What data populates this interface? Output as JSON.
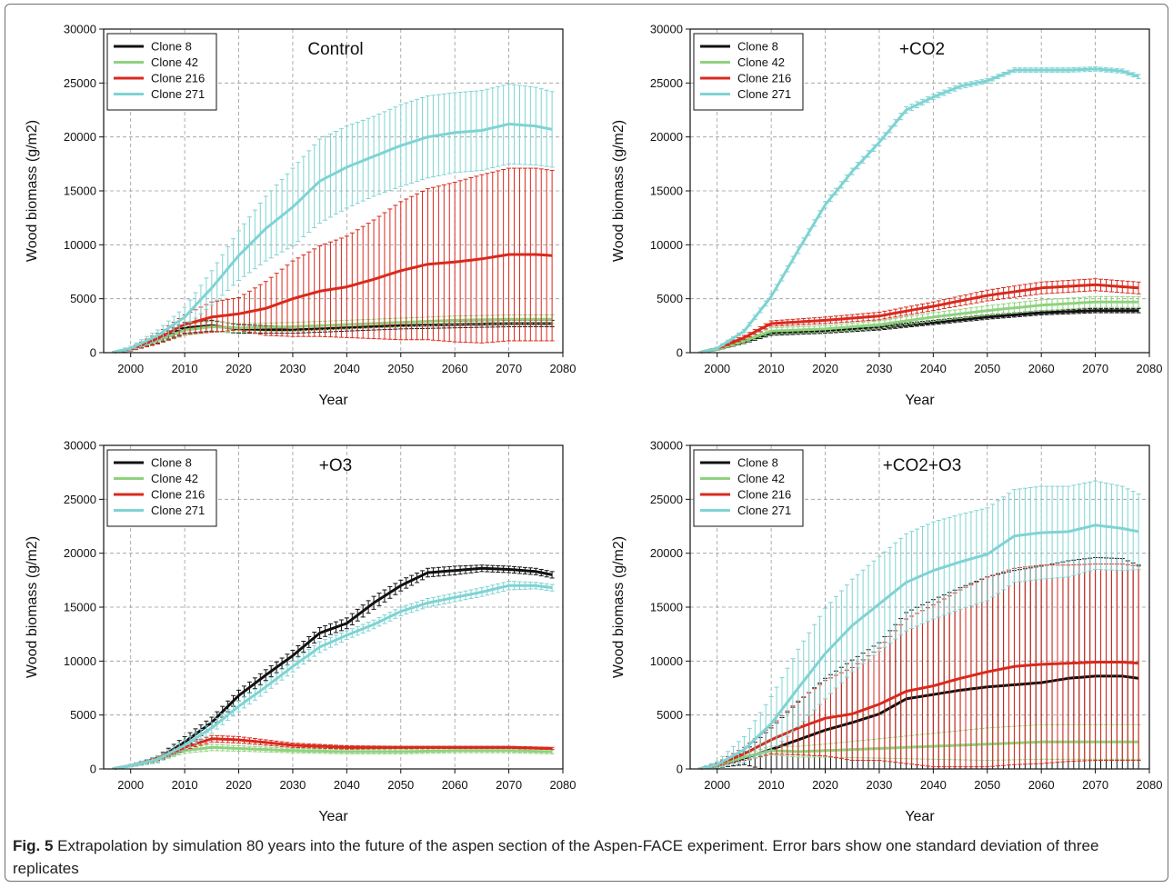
{
  "caption": {
    "label": "Fig. 5",
    "text": "Extrapolation by simulation 80 years into the future of the aspen section of the Aspen-FACE experiment. Error bars show one standard deviation of three replicates"
  },
  "colors": {
    "clone8": "#111111",
    "clone42": "#8fd27e",
    "clone216": "#d9291c",
    "clone271": "#7fd3d3",
    "grid": "#9a9a9a"
  },
  "chart_data": [
    {
      "type": "line",
      "title": "Control",
      "xlabel": "Year",
      "ylabel": "Wood biomass (g/m2)",
      "xlim": [
        1995,
        2080
      ],
      "ylim": [
        0,
        30000
      ],
      "xticks": [
        2000,
        2010,
        2020,
        2030,
        2040,
        2050,
        2060,
        2070,
        2080
      ],
      "yticks": [
        0,
        5000,
        10000,
        15000,
        20000,
        25000,
        30000
      ],
      "grid": true,
      "legend_position": "top-left",
      "error_bars": "one standard deviation",
      "series": [
        {
          "name": "Clone 8",
          "color": "#111111",
          "x": [
            1997,
            2000,
            2005,
            2010,
            2015,
            2020,
            2030,
            2040,
            2050,
            2060,
            2070,
            2078
          ],
          "y": [
            50,
            300,
            1200,
            2300,
            2500,
            2200,
            2100,
            2300,
            2500,
            2600,
            2700,
            2700
          ],
          "err": [
            30,
            100,
            300,
            500,
            500,
            400,
            300,
            300,
            300,
            300,
            300,
            300
          ]
        },
        {
          "name": "Clone 42",
          "color": "#8fd27e",
          "x": [
            1997,
            2000,
            2005,
            2010,
            2015,
            2020,
            2030,
            2040,
            2050,
            2060,
            2070,
            2078
          ],
          "y": [
            50,
            300,
            1100,
            2100,
            2400,
            2300,
            2400,
            2600,
            2800,
            3000,
            3100,
            3100
          ],
          "err": [
            30,
            100,
            300,
            500,
            500,
            400,
            400,
            400,
            400,
            400,
            400,
            400
          ]
        },
        {
          "name": "Clone 216",
          "color": "#d9291c",
          "x": [
            1997,
            2000,
            2005,
            2010,
            2015,
            2020,
            2025,
            2030,
            2035,
            2040,
            2045,
            2050,
            2055,
            2060,
            2065,
            2070,
            2075,
            2078
          ],
          "y": [
            50,
            300,
            1300,
            2600,
            3300,
            3600,
            4100,
            5000,
            5700,
            6100,
            6800,
            7600,
            8200,
            8400,
            8700,
            9100,
            9100,
            9000
          ],
          "err": [
            50,
            150,
            500,
            900,
            1400,
            1500,
            2500,
            3500,
            4200,
            4700,
            5500,
            6400,
            7000,
            7400,
            7800,
            8000,
            8000,
            7900
          ]
        },
        {
          "name": "Clone 271",
          "color": "#7fd3d3",
          "x": [
            1997,
            2000,
            2005,
            2010,
            2015,
            2020,
            2025,
            2030,
            2035,
            2040,
            2045,
            2050,
            2055,
            2060,
            2065,
            2070,
            2075,
            2078
          ],
          "y": [
            50,
            400,
            1600,
            3300,
            6000,
            9000,
            11500,
            13500,
            15900,
            17200,
            18200,
            19200,
            20000,
            20400,
            20600,
            21200,
            21000,
            20700
          ],
          "err": [
            50,
            200,
            500,
            900,
            1600,
            2300,
            3000,
            3600,
            3900,
            3800,
            3700,
            3800,
            3800,
            3700,
            3700,
            3700,
            3600,
            3500
          ]
        }
      ]
    },
    {
      "type": "line",
      "title": "+CO2",
      "xlabel": "Year",
      "ylabel": "Wood biomass (g/m2)",
      "xlim": [
        1995,
        2080
      ],
      "ylim": [
        0,
        30000
      ],
      "xticks": [
        2000,
        2010,
        2020,
        2030,
        2040,
        2050,
        2060,
        2070,
        2080
      ],
      "yticks": [
        0,
        5000,
        10000,
        15000,
        20000,
        25000,
        30000
      ],
      "grid": true,
      "legend_position": "top-left",
      "error_bars": "one standard deviation",
      "series": [
        {
          "name": "Clone 8",
          "color": "#111111",
          "x": [
            1997,
            2000,
            2005,
            2010,
            2020,
            2030,
            2040,
            2050,
            2060,
            2070,
            2078
          ],
          "y": [
            50,
            300,
            1000,
            1800,
            2000,
            2300,
            2800,
            3300,
            3700,
            3900,
            3900
          ],
          "err": [
            30,
            80,
            150,
            200,
            200,
            200,
            200,
            200,
            200,
            200,
            200
          ]
        },
        {
          "name": "Clone 42",
          "color": "#8fd27e",
          "x": [
            1997,
            2000,
            2005,
            2010,
            2020,
            2030,
            2040,
            2050,
            2060,
            2070,
            2078
          ],
          "y": [
            50,
            300,
            1100,
            2000,
            2200,
            2600,
            3300,
            3900,
            4400,
            4700,
            4700
          ],
          "err": [
            30,
            80,
            200,
            300,
            300,
            350,
            400,
            450,
            500,
            500,
            500
          ]
        },
        {
          "name": "Clone 216",
          "color": "#d9291c",
          "x": [
            1997,
            2000,
            2005,
            2010,
            2020,
            2030,
            2040,
            2050,
            2060,
            2070,
            2078
          ],
          "y": [
            50,
            400,
            1400,
            2700,
            3000,
            3400,
            4300,
            5300,
            6000,
            6300,
            6000
          ],
          "err": [
            40,
            100,
            200,
            250,
            300,
            350,
            400,
            500,
            550,
            550,
            550
          ]
        },
        {
          "name": "Clone 271",
          "color": "#7fd3d3",
          "x": [
            1997,
            2000,
            2005,
            2010,
            2015,
            2020,
            2025,
            2030,
            2035,
            2040,
            2045,
            2050,
            2055,
            2060,
            2065,
            2070,
            2075,
            2078
          ],
          "y": [
            50,
            400,
            2000,
            5200,
            9500,
            13700,
            16800,
            19500,
            22500,
            23700,
            24700,
            25200,
            26200,
            26200,
            26200,
            26300,
            26100,
            25600
          ],
          "err": [
            40,
            100,
            150,
            250,
            300,
            300,
            300,
            300,
            300,
            250,
            250,
            200,
            200,
            200,
            200,
            200,
            200,
            200
          ]
        }
      ]
    },
    {
      "type": "line",
      "title": "+O3",
      "xlabel": "Year",
      "ylabel": "Wood biomass (g/m2)",
      "xlim": [
        1995,
        2080
      ],
      "ylim": [
        0,
        30000
      ],
      "xticks": [
        2000,
        2010,
        2020,
        2030,
        2040,
        2050,
        2060,
        2070,
        2080
      ],
      "yticks": [
        0,
        5000,
        10000,
        15000,
        20000,
        25000,
        30000
      ],
      "grid": true,
      "legend_position": "top-left",
      "error_bars": "one standard deviation",
      "series": [
        {
          "name": "Clone 8",
          "color": "#111111",
          "x": [
            1997,
            2000,
            2005,
            2010,
            2015,
            2020,
            2025,
            2030,
            2035,
            2040,
            2045,
            2050,
            2055,
            2060,
            2065,
            2070,
            2075,
            2078
          ],
          "y": [
            50,
            300,
            900,
            2500,
            4300,
            6800,
            8700,
            10500,
            12600,
            13500,
            15400,
            17000,
            18200,
            18400,
            18600,
            18500,
            18300,
            18000
          ],
          "err": [
            40,
            100,
            300,
            500,
            500,
            500,
            500,
            500,
            500,
            500,
            600,
            500,
            400,
            400,
            300,
            300,
            300,
            300
          ]
        },
        {
          "name": "Clone 42",
          "color": "#8fd27e",
          "x": [
            1997,
            2000,
            2005,
            2010,
            2015,
            2020,
            2030,
            2040,
            2050,
            2060,
            2070,
            2078
          ],
          "y": [
            50,
            300,
            900,
            1700,
            2000,
            1900,
            1700,
            1600,
            1600,
            1700,
            1700,
            1600
          ],
          "err": [
            30,
            80,
            200,
            250,
            300,
            250,
            200,
            200,
            200,
            200,
            200,
            200
          ]
        },
        {
          "name": "Clone 216",
          "color": "#d9291c",
          "x": [
            1997,
            2000,
            2005,
            2010,
            2015,
            2020,
            2030,
            2040,
            2050,
            2060,
            2070,
            2078
          ],
          "y": [
            50,
            300,
            1000,
            2000,
            2800,
            2700,
            2200,
            2000,
            2000,
            2000,
            2000,
            1900
          ],
          "err": [
            30,
            80,
            200,
            250,
            300,
            300,
            200,
            150,
            100,
            100,
            100,
            100
          ]
        },
        {
          "name": "Clone 271",
          "color": "#7fd3d3",
          "x": [
            1997,
            2000,
            2005,
            2010,
            2015,
            2020,
            2025,
            2030,
            2035,
            2040,
            2045,
            2050,
            2055,
            2060,
            2065,
            2070,
            2075,
            2078
          ],
          "y": [
            50,
            300,
            900,
            2200,
            3800,
            5800,
            7600,
            9500,
            11300,
            12400,
            13400,
            14600,
            15400,
            15900,
            16400,
            17000,
            17000,
            16800
          ],
          "err": [
            40,
            100,
            300,
            500,
            500,
            500,
            500,
            500,
            500,
            400,
            400,
            400,
            400,
            400,
            400,
            400,
            300,
            300
          ]
        }
      ]
    },
    {
      "type": "line",
      "title": "+CO2+O3",
      "xlabel": "Year",
      "ylabel": "Wood biomass (g/m2)",
      "xlim": [
        1995,
        2080
      ],
      "ylim": [
        0,
        30000
      ],
      "xticks": [
        2000,
        2010,
        2020,
        2030,
        2040,
        2050,
        2060,
        2070,
        2080
      ],
      "yticks": [
        0,
        5000,
        10000,
        15000,
        20000,
        25000,
        30000
      ],
      "grid": true,
      "legend_position": "top-left",
      "error_bars": "one standard deviation",
      "series": [
        {
          "name": "Clone 8",
          "color": "#111111",
          "x": [
            1997,
            2000,
            2005,
            2010,
            2015,
            2020,
            2025,
            2030,
            2035,
            2040,
            2045,
            2050,
            2055,
            2060,
            2065,
            2070,
            2075,
            2078
          ],
          "y": [
            50,
            300,
            1000,
            1800,
            2700,
            3600,
            4300,
            5100,
            6500,
            6900,
            7300,
            7600,
            7800,
            8000,
            8400,
            8600,
            8600,
            8400
          ],
          "err": [
            40,
            200,
            600,
            2000,
            3500,
            4800,
            5800,
            6600,
            8000,
            8800,
            9500,
            10200,
            10600,
            10800,
            10900,
            11000,
            10900,
            10500
          ]
        },
        {
          "name": "Clone 42",
          "color": "#8fd27e",
          "x": [
            1997,
            2000,
            2005,
            2010,
            2015,
            2020,
            2030,
            2040,
            2050,
            2060,
            2070,
            2078
          ],
          "y": [
            50,
            300,
            1100,
            1700,
            1600,
            1700,
            1900,
            2100,
            2300,
            2500,
            2500,
            2500
          ],
          "err": [
            30,
            100,
            300,
            400,
            500,
            600,
            900,
            1200,
            1500,
            1600,
            1600,
            1600
          ]
        },
        {
          "name": "Clone 216",
          "color": "#d9291c",
          "x": [
            1997,
            2000,
            2005,
            2010,
            2015,
            2020,
            2025,
            2030,
            2035,
            2040,
            2045,
            2050,
            2055,
            2060,
            2065,
            2070,
            2075,
            2078
          ],
          "y": [
            50,
            400,
            1400,
            2700,
            3800,
            4700,
            5100,
            6000,
            7200,
            7700,
            8400,
            9000,
            9500,
            9700,
            9800,
            9900,
            9900,
            9800
          ],
          "err": [
            40,
            150,
            600,
            1300,
            2500,
            3500,
            4300,
            5200,
            6700,
            7500,
            8200,
            8800,
            9100,
            9200,
            9100,
            9100,
            9100,
            9000
          ]
        },
        {
          "name": "Clone 271",
          "color": "#7fd3d3",
          "x": [
            1997,
            2000,
            2005,
            2010,
            2015,
            2020,
            2025,
            2030,
            2035,
            2040,
            2045,
            2050,
            2055,
            2060,
            2065,
            2070,
            2075,
            2078
          ],
          "y": [
            50,
            400,
            1800,
            4200,
            7500,
            10700,
            13300,
            15300,
            17300,
            18400,
            19200,
            19900,
            21600,
            21900,
            22000,
            22600,
            22300,
            22000
          ],
          "err": [
            50,
            300,
            1200,
            2500,
            3600,
            4200,
            4300,
            4400,
            4500,
            4500,
            4400,
            4300,
            4300,
            4300,
            4200,
            4100,
            3900,
            3500
          ]
        }
      ]
    }
  ]
}
